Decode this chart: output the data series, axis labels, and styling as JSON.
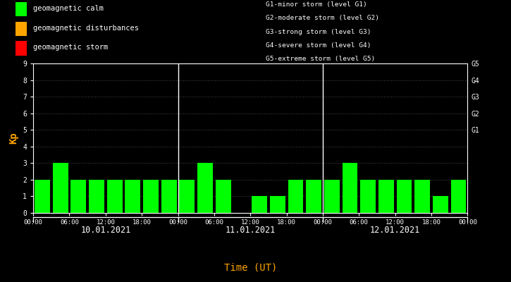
{
  "bg_color": "#000000",
  "plot_bg_color": "#000000",
  "bar_color_calm": "#00ff00",
  "bar_color_disturbance": "#ffa500",
  "bar_color_storm": "#ff0000",
  "text_color": "#ffffff",
  "title_color": "#ffa500",
  "kp_ylabel": "Kp",
  "xlabel": "Time (UT)",
  "ylim": [
    0,
    9
  ],
  "yticks": [
    0,
    1,
    2,
    3,
    4,
    5,
    6,
    7,
    8,
    9
  ],
  "right_labels": [
    "G5",
    "G4",
    "G3",
    "G2",
    "G1"
  ],
  "right_label_yvals": [
    9,
    8,
    7,
    6,
    5
  ],
  "day_labels": [
    "10.01.2021",
    "11.01.2021",
    "12.01.2021"
  ],
  "day1_values": [
    2,
    3,
    2,
    2,
    2,
    2,
    2,
    2
  ],
  "day2_values": [
    2,
    3,
    2,
    0,
    1,
    1,
    2,
    2
  ],
  "day3_values": [
    2,
    3,
    2,
    2,
    2,
    2,
    1,
    2
  ],
  "legend_items": [
    {
      "label": "geomagnetic calm",
      "color": "#00ff00"
    },
    {
      "label": "geomagnetic disturbances",
      "color": "#ffa500"
    },
    {
      "label": "geomagnetic storm",
      "color": "#ff0000"
    }
  ],
  "legend_right_lines": [
    "G1-minor storm (level G1)",
    "G2-moderate storm (level G2)",
    "G3-strong storm (level G3)",
    "G4-severe storm (level G4)",
    "G5-extreme storm (level G5)"
  ],
  "x_tick_labels": [
    "00:00",
    "06:00",
    "12:00",
    "18:00",
    "00:00",
    "06:00",
    "12:00",
    "18:00",
    "00:00",
    "06:00",
    "12:00",
    "18:00",
    "00:00"
  ],
  "bar_width": 0.85
}
